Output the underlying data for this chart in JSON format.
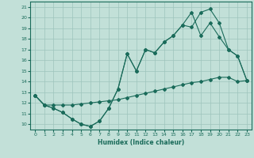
{
  "xlabel": "Humidex (Indice chaleur)",
  "bg_color": "#c2e0d8",
  "grid_color": "#9dc4bc",
  "line_color": "#1a6b5a",
  "xlim": [
    -0.5,
    23.5
  ],
  "ylim": [
    9.5,
    21.5
  ],
  "xticks": [
    0,
    1,
    2,
    3,
    4,
    5,
    6,
    7,
    8,
    9,
    10,
    11,
    12,
    13,
    14,
    15,
    16,
    17,
    18,
    19,
    20,
    21,
    22,
    23
  ],
  "yticks": [
    10,
    11,
    12,
    13,
    14,
    15,
    16,
    17,
    18,
    19,
    20,
    21
  ],
  "line1_x": [
    0,
    1,
    2,
    3,
    4,
    5,
    6,
    7,
    8,
    9,
    10,
    11,
    12,
    13,
    14,
    15,
    16,
    17,
    18,
    19,
    20,
    21,
    22,
    23
  ],
  "line1_y": [
    12.7,
    11.8,
    11.5,
    11.1,
    10.5,
    10.0,
    9.8,
    10.3,
    11.5,
    13.3,
    16.6,
    15.0,
    17.0,
    16.7,
    17.7,
    18.3,
    19.3,
    19.1,
    20.5,
    20.8,
    19.5,
    17.0,
    16.4,
    14.1
  ],
  "line2_x": [
    0,
    1,
    2,
    3,
    4,
    5,
    6,
    7,
    8,
    9,
    10,
    11,
    12,
    13,
    14,
    15,
    16,
    17,
    18,
    19,
    20,
    21,
    22,
    23
  ],
  "line2_y": [
    12.7,
    11.8,
    11.5,
    11.1,
    10.5,
    10.0,
    9.8,
    10.3,
    11.5,
    13.3,
    16.6,
    15.0,
    17.0,
    16.7,
    17.7,
    18.3,
    19.3,
    20.5,
    18.3,
    19.5,
    18.2,
    17.0,
    16.4,
    14.1
  ],
  "line3_x": [
    0,
    1,
    2,
    3,
    4,
    5,
    6,
    7,
    8,
    9,
    10,
    11,
    12,
    13,
    14,
    15,
    16,
    17,
    18,
    19,
    20,
    21,
    22,
    23
  ],
  "line3_y": [
    12.7,
    11.8,
    11.8,
    11.8,
    11.8,
    11.9,
    12.0,
    12.1,
    12.2,
    12.3,
    12.5,
    12.7,
    12.9,
    13.1,
    13.3,
    13.5,
    13.7,
    13.9,
    14.0,
    14.2,
    14.4,
    14.4,
    14.0,
    14.1
  ]
}
